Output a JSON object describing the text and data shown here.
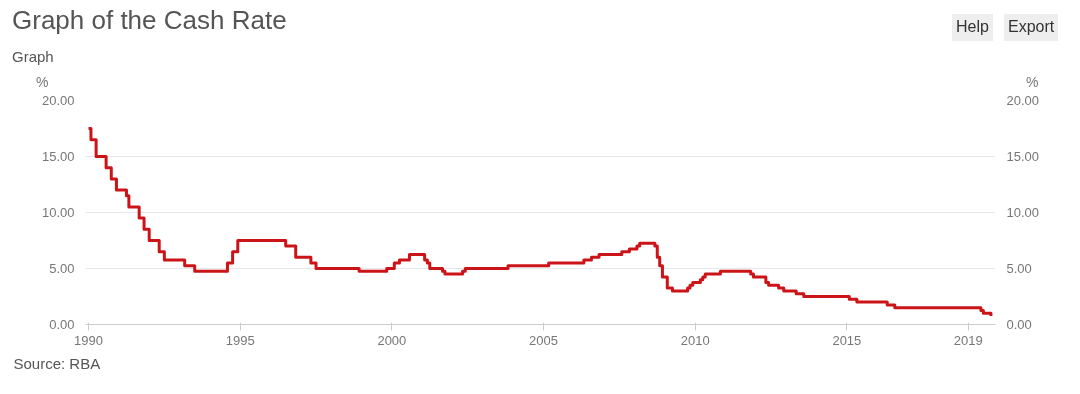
{
  "chart_data": {
    "type": "step",
    "title": "Graph of the Cash Rate",
    "subtitle": "Graph",
    "ylabel": "%",
    "y2label": "%",
    "annotations": [
      "Source: RBA",
      "Help",
      "Export"
    ],
    "x": [
      1990.0,
      1990.08,
      1990.25,
      1990.58,
      1990.75,
      1990.92,
      1991.25,
      1991.33,
      1991.67,
      1991.83,
      1992.0,
      1992.33,
      1992.5,
      1993.17,
      1993.5,
      1994.58,
      1994.75,
      1994.92,
      1996.5,
      1996.83,
      1997.33,
      1997.5,
      1998.92,
      1999.83,
      2000.08,
      2000.25,
      2000.58,
      2001.08,
      2001.17,
      2001.25,
      2001.67,
      2001.75,
      2002.33,
      2002.42,
      2003.83,
      2003.92,
      2005.17,
      2006.33,
      2006.58,
      2006.83,
      2007.58,
      2007.83,
      2008.08,
      2008.17,
      2008.67,
      2008.75,
      2008.83,
      2008.92,
      2009.08,
      2009.25,
      2009.75,
      2009.83,
      2009.92,
      2010.17,
      2010.25,
      2010.33,
      2010.83,
      2011.83,
      2011.92,
      2012.33,
      2012.42,
      2012.75,
      2012.92,
      2013.33,
      2013.58,
      2015.08,
      2015.33,
      2016.33,
      2016.58,
      2019.42,
      2019.5,
      2019.75
    ],
    "series": [
      {
        "color": "#cc1418",
        "values": [
          17.5,
          16.5,
          15,
          14,
          13,
          12,
          11.5,
          10.5,
          9.5,
          8.5,
          7.5,
          6.5,
          5.75,
          5.25,
          4.75,
          5.5,
          6.5,
          7.5,
          7,
          6,
          5.5,
          5,
          4.75,
          5,
          5.5,
          5.75,
          6.25,
          5.75,
          5.5,
          5,
          4.75,
          4.5,
          4.75,
          5,
          5.25,
          5.25,
          5.5,
          5.75,
          6,
          6.25,
          6.5,
          6.75,
          7,
          7.25,
          7,
          6,
          5.25,
          4.25,
          3.25,
          3,
          3.25,
          3.5,
          3.75,
          4,
          4.25,
          4.5,
          4.75,
          4.5,
          4.25,
          3.75,
          3.5,
          3.25,
          3,
          2.75,
          2.5,
          2.25,
          2,
          1.75,
          1.5,
          1.25,
          1,
          0.75
        ]
      }
    ],
    "xlim": [
      1989.9,
      2019.9
    ],
    "xticks": [
      1990,
      1995,
      2000,
      2005,
      2010,
      2015,
      2019
    ],
    "ylim": [
      0,
      20
    ],
    "yticks": [
      {
        "value": 0,
        "label": "0.00"
      },
      {
        "value": 5,
        "label": "5.00"
      },
      {
        "value": 10,
        "label": "10.00"
      },
      {
        "value": 15,
        "label": "15.00"
      },
      {
        "value": 20,
        "label": "20.00"
      }
    ],
    "y2lim": [
      0,
      20
    ],
    "y2ticks": [
      {
        "value": 0,
        "label": "0.00"
      },
      {
        "value": 5,
        "label": "5.00"
      },
      {
        "value": 10,
        "label": "10.00"
      },
      {
        "value": 15,
        "label": "15.00"
      },
      {
        "value": 20,
        "label": "20.00"
      }
    ],
    "grid": "y",
    "marker": "none",
    "line_style": "solid"
  }
}
